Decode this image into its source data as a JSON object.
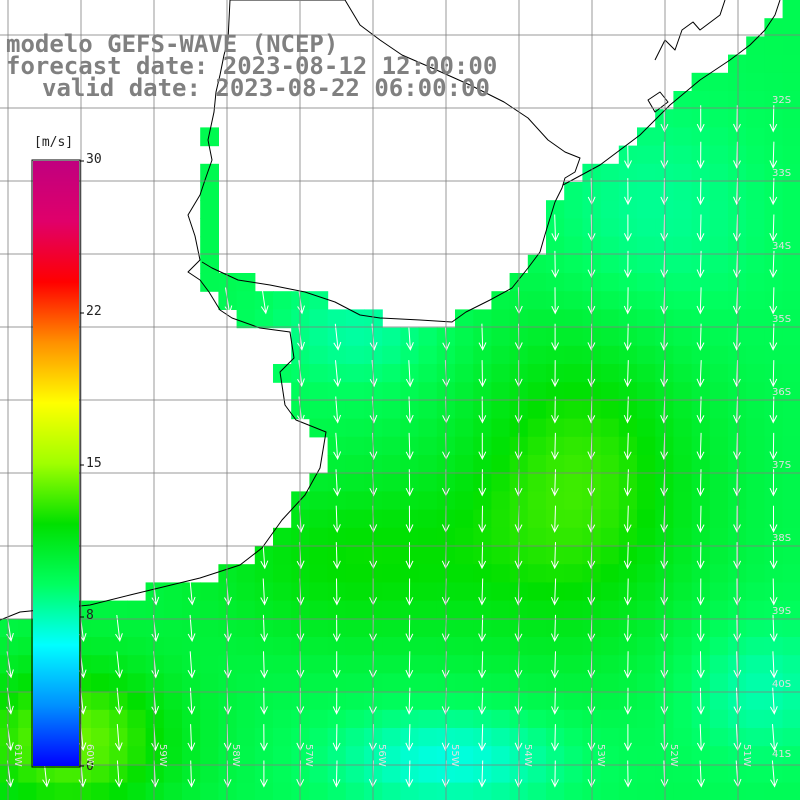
{
  "title": {
    "line1": "modelo GEFS-WAVE (NCEP)",
    "line2": "forecast date: 2023-08-12 12:00:00",
    "line3": "valid date: 2023-08-22 06:00:00"
  },
  "colorbar": {
    "unit": "[m/s]",
    "ticks": [
      {
        "value": 30,
        "label": "30"
      },
      {
        "value": 22,
        "label": "22"
      },
      {
        "value": 15,
        "label": "15"
      },
      {
        "value": 8,
        "label": "8"
      },
      {
        "value": 0,
        "label": "0"
      }
    ],
    "stops": [
      "#0000ff",
      "#0090ff",
      "#00ffff",
      "#00ff60",
      "#00e000",
      "#a0ff00",
      "#ffff00",
      "#ff9000",
      "#ff0000",
      "#e0006a",
      "#c0007f"
    ]
  },
  "lat_labels": [
    "32S",
    "33S",
    "34S",
    "35S",
    "36S",
    "37S",
    "38S",
    "39S",
    "40S",
    "41S"
  ],
  "lon_labels": [
    "61W",
    "60W",
    "59W",
    "58W",
    "57W",
    "56W",
    "55W",
    "54W",
    "53W",
    "52W",
    "51W"
  ],
  "field": {
    "variable": "wind speed",
    "wind_from": "north-northeast"
  },
  "colors": {
    "land": "#ffffff",
    "coast": "#000000",
    "grid": "#808080",
    "title": "#808080",
    "arrow": "#ffffff"
  }
}
